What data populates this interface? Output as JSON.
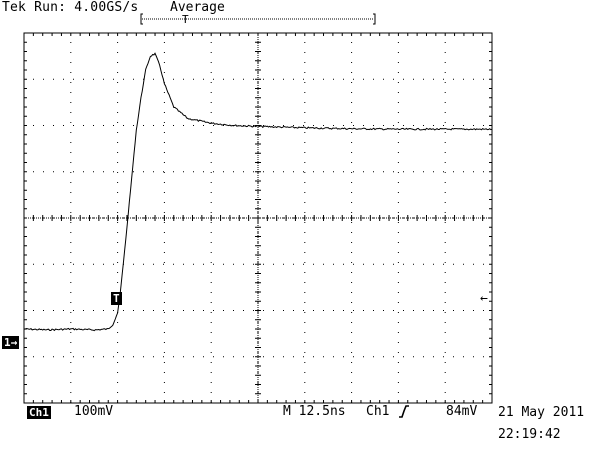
{
  "header": {
    "status": "Tek Run: 4.00GS/s",
    "acq_mode": "Average",
    "trigger_position_marker": "T"
  },
  "markers": {
    "trigger": "T",
    "channel": "1",
    "channel_arrow": "→",
    "level_arrow": "←"
  },
  "readout": {
    "channel_label": "Ch1",
    "volts_per_div": "100mV",
    "timebase": "M 12.5ns",
    "trigger_source": "Ch1",
    "trigger_slope_icon": "rising-edge-icon",
    "trigger_level": "84mV",
    "date": "21 May 2011",
    "time": "22:19:42"
  },
  "colors": {
    "trace": "#000000",
    "graticule": "#000000",
    "background": "#ffffff"
  },
  "chart_data": {
    "type": "line",
    "title": "",
    "xlabel": "",
    "ylabel": "",
    "x_units": "divisions",
    "y_units": "divisions",
    "xlim": [
      0,
      10
    ],
    "ylim": [
      -4,
      4
    ],
    "grid": true,
    "series": [
      {
        "x": [
          0,
          0.5,
          1,
          1.5,
          1.8,
          1.9,
          2.0,
          2.05,
          2.1,
          2.2,
          2.3,
          2.4,
          2.5,
          2.6,
          2.7,
          2.8,
          2.9,
          3.0,
          3.2,
          3.5,
          4.0,
          4.5,
          5.0,
          6.0,
          7.0,
          8.0,
          9.0,
          10.0
        ],
        "y": [
          -2.4,
          -2.42,
          -2.4,
          -2.42,
          -2.4,
          -2.3,
          -2.05,
          -1.7,
          -1.2,
          -0.2,
          0.85,
          1.9,
          2.6,
          3.2,
          3.5,
          3.55,
          3.3,
          2.9,
          2.4,
          2.15,
          2.05,
          2.0,
          1.98,
          1.95,
          1.93,
          1.92,
          1.92,
          1.92
        ]
      }
    ]
  }
}
